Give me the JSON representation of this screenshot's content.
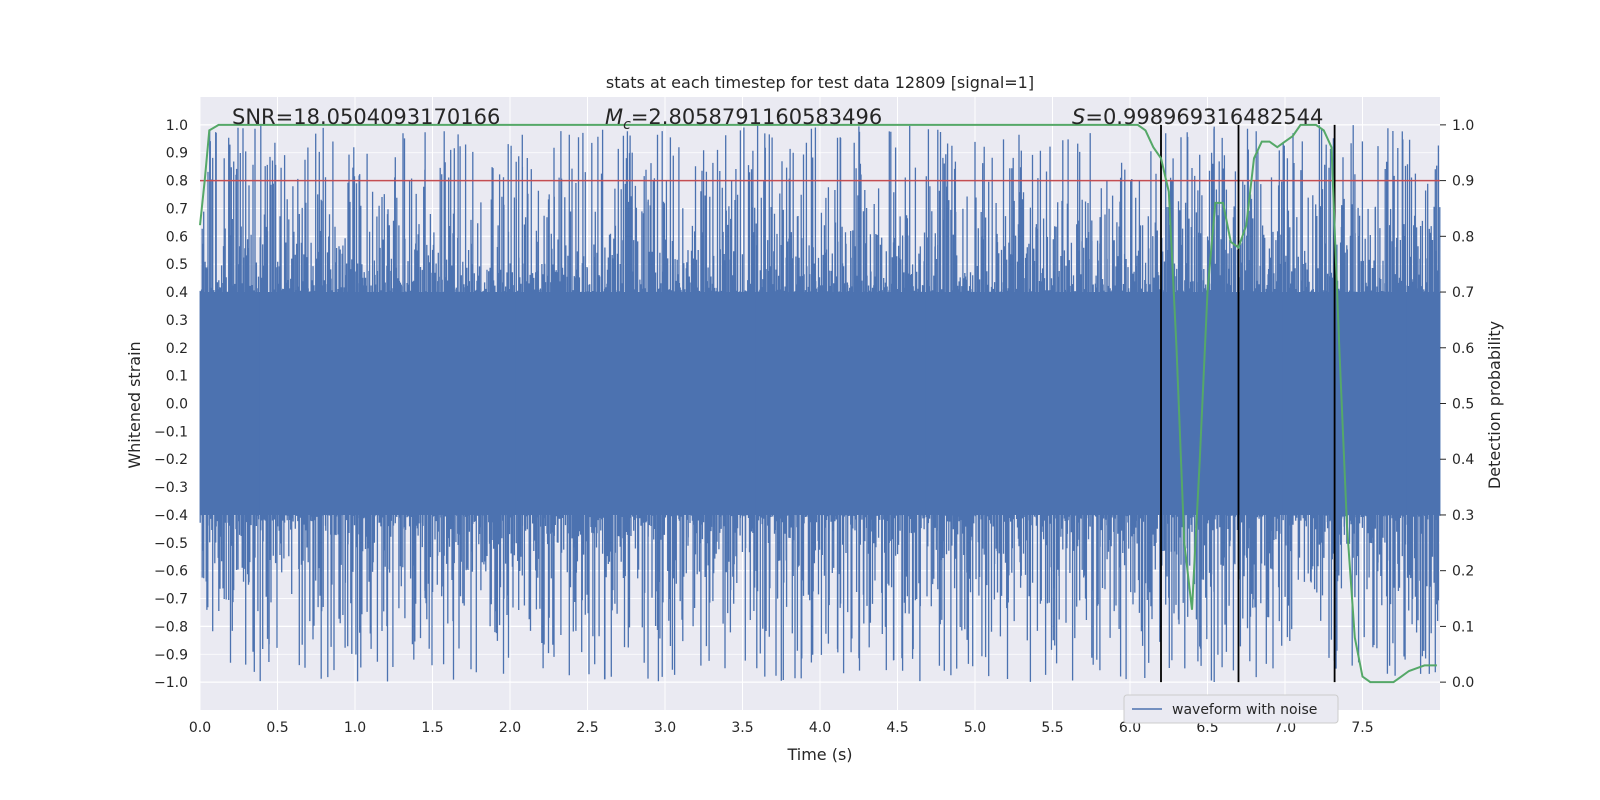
{
  "chart_data": {
    "type": "line",
    "title": "stats at each timestep for test data 12809 [signal=1]",
    "xlabel": "Time (s)",
    "ylabel": "Whitened strain",
    "y2label": "Detection probability",
    "xlim": [
      0.0,
      8.0
    ],
    "ylim": [
      -1.1,
      1.1
    ],
    "y2lim": [
      -0.05,
      1.05
    ],
    "xticks": [
      "0.0",
      "0.5",
      "1.0",
      "1.5",
      "2.0",
      "2.5",
      "3.0",
      "3.5",
      "4.0",
      "4.5",
      "5.0",
      "5.5",
      "6.0",
      "6.5",
      "7.0",
      "7.5"
    ],
    "yticks": [
      "1.0",
      "0.9",
      "0.8",
      "0.7",
      "0.6",
      "0.5",
      "0.4",
      "0.3",
      "0.2",
      "0.1",
      "0.0",
      "−0.1",
      "−0.2",
      "−0.3",
      "−0.4",
      "−0.5",
      "−0.6",
      "−0.7",
      "−0.8",
      "−0.9",
      "−1.0"
    ],
    "y2ticks": [
      "1.0",
      "0.9",
      "0.8",
      "0.7",
      "0.6",
      "0.5",
      "0.4",
      "0.3",
      "0.2",
      "0.1",
      "0.0"
    ],
    "annotations": {
      "snr": "SNR=18.0504093170166",
      "mc_symbol": "M",
      "mc_sub": "c",
      "mc_value": "=2.8058791160583496",
      "s_symbol": "S",
      "s_value": "=0.998969316482544"
    },
    "threshold": {
      "y": 0.8,
      "color": "#c44e52"
    },
    "vlines_x": [
      6.2,
      6.7,
      7.32
    ],
    "waveform": {
      "name": "waveform with noise",
      "color": "#4c72b0",
      "core_amplitude": 0.4,
      "peak_amplitude": 1.0,
      "seed": 12809
    },
    "detection_probability": {
      "name": "Detection probability",
      "color": "#55a868",
      "x": [
        0.0,
        0.03,
        0.06,
        0.12,
        0.5,
        1.0,
        1.5,
        2.0,
        2.5,
        3.0,
        3.5,
        4.0,
        4.5,
        5.0,
        5.5,
        6.0,
        6.05,
        6.1,
        6.15,
        6.2,
        6.25,
        6.3,
        6.35,
        6.4,
        6.45,
        6.5,
        6.55,
        6.6,
        6.65,
        6.7,
        6.75,
        6.8,
        6.85,
        6.9,
        6.95,
        7.0,
        7.05,
        7.1,
        7.15,
        7.2,
        7.25,
        7.3,
        7.35,
        7.4,
        7.45,
        7.5,
        7.55,
        7.6,
        7.65,
        7.7,
        7.75,
        7.8,
        7.85,
        7.9,
        7.98
      ],
      "y": [
        0.82,
        0.9,
        0.99,
        1.0,
        1.0,
        1.0,
        1.0,
        1.0,
        1.0,
        1.0,
        1.0,
        1.0,
        1.0,
        1.0,
        1.0,
        1.0,
        1.0,
        0.99,
        0.96,
        0.94,
        0.88,
        0.6,
        0.25,
        0.13,
        0.4,
        0.7,
        0.86,
        0.86,
        0.79,
        0.78,
        0.82,
        0.94,
        0.97,
        0.97,
        0.96,
        0.97,
        0.98,
        1.0,
        1.0,
        1.0,
        0.99,
        0.96,
        0.6,
        0.28,
        0.08,
        0.01,
        0.0,
        0.0,
        0.0,
        0.0,
        0.01,
        0.02,
        0.025,
        0.03,
        0.03
      ]
    },
    "legend": {
      "label": "waveform with noise",
      "position": "lower-right"
    },
    "grid": true
  }
}
